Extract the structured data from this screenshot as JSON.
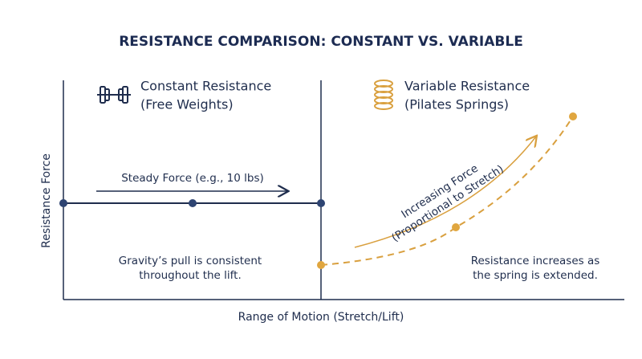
{
  "title": "RESISTANCE COMPARISON: CONSTANT VS. VARIABLE",
  "y_axis_label": "Resistance Force",
  "x_axis_label": "Range of Motion (Stretch/Lift)",
  "constant": {
    "title": "Constant Resistance",
    "subtitle": "(Free Weights)",
    "force_label": "Steady Force (e.g., 10 lbs)",
    "note": [
      "Gravity’s pull is consistent",
      "throughout the lift."
    ]
  },
  "variable": {
    "title": "Variable Resistance",
    "subtitle": "(Pilates Springs)",
    "force_label": [
      "Increasing Force",
      "(Proportional to Stretch)"
    ],
    "note": [
      "Resistance increases as",
      "the spring is extended."
    ]
  }
}
